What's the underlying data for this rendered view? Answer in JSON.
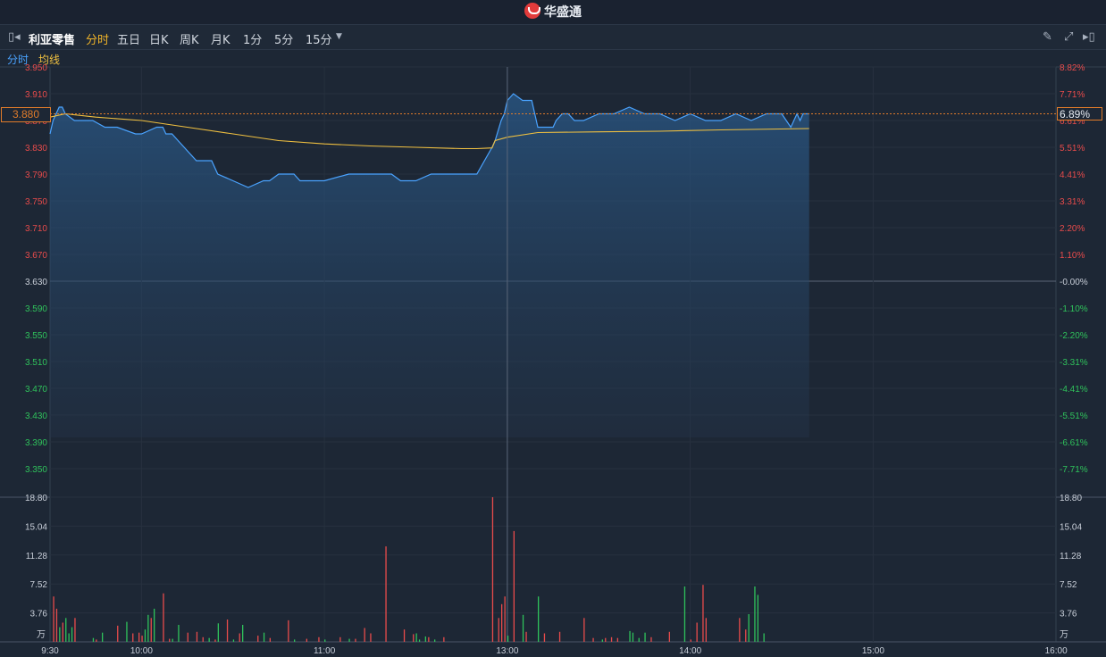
{
  "app": {
    "brand": "华盛通"
  },
  "toolbar": {
    "stock_name": "利亚零售",
    "periods": [
      "分时",
      "五日",
      "日K",
      "周K",
      "月K",
      "1分",
      "5分",
      "15分"
    ],
    "active_period": "分时"
  },
  "legend": {
    "line1": "分时",
    "line2": "均线"
  },
  "colors": {
    "up": "#e84b4b",
    "down": "#2fc25b",
    "price_line": "#4aa3ff",
    "avg_line": "#f0c040",
    "active": "#f0b429"
  },
  "current": {
    "price": "3.880",
    "change_pct": "6.89%"
  },
  "chart_data": [
    {
      "type": "line",
      "y_ticks_left": [
        "3.950",
        "3.910",
        "3.870",
        "3.830",
        "3.790",
        "3.750",
        "3.710",
        "3.670",
        "3.630",
        "3.590",
        "3.550",
        "3.510",
        "3.470",
        "3.430",
        "3.390",
        "3.350"
      ],
      "y_ticks_right": [
        "8.82%",
        "7.71%",
        "6.61%",
        "5.51%",
        "4.41%",
        "3.31%",
        "2.20%",
        "1.10%",
        "-0.00%",
        "-1.10%",
        "-2.20%",
        "-3.31%",
        "-4.41%",
        "-5.51%",
        "-6.61%",
        "-7.71%"
      ],
      "ylim": [
        3.33,
        3.953
      ],
      "prev_close": 3.63,
      "x_ticks": [
        "9:30",
        "10:00",
        "11:00",
        "13:00",
        "14:00",
        "15:00",
        "16:00"
      ],
      "series": [
        {
          "name": "分时",
          "x": [
            0,
            1,
            2,
            3,
            4,
            5,
            8,
            10,
            11,
            12,
            14,
            18,
            20,
            22,
            28,
            30,
            35,
            37,
            38,
            40,
            42,
            48,
            52,
            53,
            55,
            60,
            65,
            70,
            72,
            75,
            80,
            82,
            90,
            98,
            105,
            110,
            112,
            115,
            120,
            125,
            130,
            135,
            140,
            145,
            146,
            148,
            149,
            150,
            152,
            155,
            158,
            160,
            163,
            165,
            166,
            168,
            170,
            172,
            175,
            180,
            185,
            190,
            195,
            200,
            205,
            210,
            215,
            220,
            225,
            230,
            235,
            240,
            243,
            245,
            246,
            247,
            249
          ],
          "y": [
            3.85,
            3.87,
            3.88,
            3.89,
            3.89,
            3.88,
            3.87,
            3.87,
            3.87,
            3.87,
            3.87,
            3.86,
            3.86,
            3.86,
            3.85,
            3.85,
            3.86,
            3.86,
            3.85,
            3.85,
            3.84,
            3.81,
            3.81,
            3.81,
            3.79,
            3.78,
            3.77,
            3.78,
            3.78,
            3.79,
            3.79,
            3.78,
            3.78,
            3.79,
            3.79,
            3.79,
            3.79,
            3.78,
            3.78,
            3.79,
            3.79,
            3.79,
            3.79,
            3.83,
            3.84,
            3.87,
            3.88,
            3.9,
            3.91,
            3.9,
            3.9,
            3.86,
            3.86,
            3.86,
            3.87,
            3.88,
            3.88,
            3.87,
            3.87,
            3.88,
            3.88,
            3.89,
            3.88,
            3.88,
            3.87,
            3.88,
            3.87,
            3.87,
            3.88,
            3.87,
            3.88,
            3.88,
            3.86,
            3.88,
            3.87,
            3.88,
            3.88
          ]
        },
        {
          "name": "均线",
          "x": [
            0,
            5,
            15,
            30,
            45,
            60,
            75,
            90,
            105,
            120,
            135,
            140,
            145,
            146,
            150,
            160,
            180,
            200,
            220,
            249
          ],
          "y": [
            3.875,
            3.88,
            3.875,
            3.87,
            3.86,
            3.85,
            3.84,
            3.835,
            3.832,
            3.83,
            3.828,
            3.828,
            3.829,
            3.84,
            3.845,
            3.852,
            3.853,
            3.854,
            3.856,
            3.858
          ]
        }
      ]
    },
    {
      "type": "bar",
      "y_ticks": [
        "18.80",
        "15.04",
        "11.28",
        "7.52",
        "3.76"
      ],
      "unit": "万",
      "ylim": [
        0,
        18.8
      ],
      "bars_up": [
        {
          "x": 1,
          "v": 5.9
        },
        {
          "x": 2,
          "v": 4.3
        },
        {
          "x": 4,
          "v": 2.5
        },
        {
          "x": 8,
          "v": 3.1
        },
        {
          "x": 15,
          "v": 0.3
        },
        {
          "x": 22,
          "v": 2.1
        },
        {
          "x": 27,
          "v": 1.1
        },
        {
          "x": 29,
          "v": 1.2
        },
        {
          "x": 30,
          "v": 0.8
        },
        {
          "x": 33,
          "v": 3.1
        },
        {
          "x": 37,
          "v": 6.3
        },
        {
          "x": 39,
          "v": 0.4
        },
        {
          "x": 45,
          "v": 1.2
        },
        {
          "x": 48,
          "v": 1.3
        },
        {
          "x": 50,
          "v": 0.6
        },
        {
          "x": 54,
          "v": 0.3
        },
        {
          "x": 58,
          "v": 2.9
        },
        {
          "x": 62,
          "v": 1.1
        },
        {
          "x": 68,
          "v": 0.8
        },
        {
          "x": 72,
          "v": 0.5
        },
        {
          "x": 78,
          "v": 2.8
        },
        {
          "x": 84,
          "v": 0.4
        },
        {
          "x": 88,
          "v": 0.6
        },
        {
          "x": 95,
          "v": 0.6
        },
        {
          "x": 100,
          "v": 0.4
        },
        {
          "x": 103,
          "v": 1.8
        },
        {
          "x": 105,
          "v": 1.1
        },
        {
          "x": 110,
          "v": 12.4
        },
        {
          "x": 116,
          "v": 1.6
        },
        {
          "x": 119,
          "v": 1.0
        },
        {
          "x": 124,
          "v": 0.6
        },
        {
          "x": 129,
          "v": 0.6
        },
        {
          "x": 145,
          "v": 18.8
        },
        {
          "x": 147,
          "v": 3.1
        },
        {
          "x": 148,
          "v": 4.9
        },
        {
          "x": 149,
          "v": 5.9
        },
        {
          "x": 152,
          "v": 14.4
        },
        {
          "x": 156,
          "v": 1.3
        },
        {
          "x": 162,
          "v": 1.1
        },
        {
          "x": 167,
          "v": 1.3
        },
        {
          "x": 175,
          "v": 3.1
        },
        {
          "x": 178,
          "v": 0.5
        },
        {
          "x": 182,
          "v": 0.5
        },
        {
          "x": 184,
          "v": 0.6
        },
        {
          "x": 186,
          "v": 0.5
        },
        {
          "x": 197,
          "v": 0.6
        },
        {
          "x": 203,
          "v": 1.3
        },
        {
          "x": 210,
          "v": 0.3
        },
        {
          "x": 212,
          "v": 2.5
        },
        {
          "x": 214,
          "v": 7.4
        },
        {
          "x": 215,
          "v": 3.1
        },
        {
          "x": 226,
          "v": 3.1
        },
        {
          "x": 228,
          "v": 1.6
        }
      ],
      "bars_down": [
        {
          "x": 3,
          "v": 1.9
        },
        {
          "x": 5,
          "v": 3.1
        },
        {
          "x": 6,
          "v": 1.1
        },
        {
          "x": 7,
          "v": 1.9
        },
        {
          "x": 14,
          "v": 0.5
        },
        {
          "x": 17,
          "v": 1.2
        },
        {
          "x": 25,
          "v": 2.6
        },
        {
          "x": 31,
          "v": 1.6
        },
        {
          "x": 32,
          "v": 3.5
        },
        {
          "x": 34,
          "v": 4.3
        },
        {
          "x": 40,
          "v": 0.4
        },
        {
          "x": 42,
          "v": 2.2
        },
        {
          "x": 52,
          "v": 0.5
        },
        {
          "x": 55,
          "v": 2.4
        },
        {
          "x": 60,
          "v": 0.3
        },
        {
          "x": 63,
          "v": 2.2
        },
        {
          "x": 70,
          "v": 1.2
        },
        {
          "x": 80,
          "v": 0.3
        },
        {
          "x": 90,
          "v": 0.3
        },
        {
          "x": 98,
          "v": 0.4
        },
        {
          "x": 120,
          "v": 1.1
        },
        {
          "x": 121,
          "v": 0.3
        },
        {
          "x": 123,
          "v": 0.7
        },
        {
          "x": 126,
          "v": 0.3
        },
        {
          "x": 150,
          "v": 0.8
        },
        {
          "x": 155,
          "v": 3.5
        },
        {
          "x": 160,
          "v": 5.9
        },
        {
          "x": 181,
          "v": 0.3
        },
        {
          "x": 190,
          "v": 1.4
        },
        {
          "x": 191,
          "v": 1.2
        },
        {
          "x": 193,
          "v": 0.5
        },
        {
          "x": 195,
          "v": 1.2
        },
        {
          "x": 208,
          "v": 7.2
        },
        {
          "x": 229,
          "v": 3.6
        },
        {
          "x": 231,
          "v": 7.2
        },
        {
          "x": 232,
          "v": 6.1
        },
        {
          "x": 234,
          "v": 1.1
        }
      ]
    }
  ]
}
